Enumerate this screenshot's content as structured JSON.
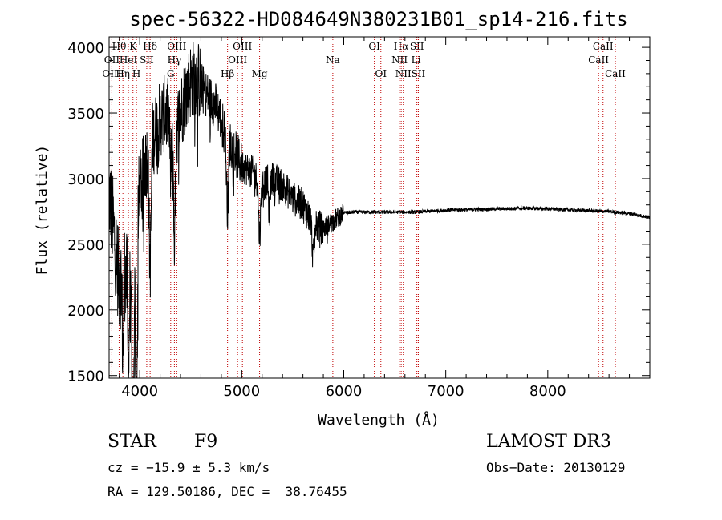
{
  "chart_data": {
    "type": "line",
    "title": "spec-56322-HD084649N380231B01_sp14-216.fits",
    "xlabel": "Wavelength (Å)",
    "ylabel": "Flux (relative)",
    "xlim": [
      3700,
      9000
    ],
    "ylim": [
      1480,
      4080
    ],
    "xticks": [
      4000,
      5000,
      6000,
      7000,
      8000
    ],
    "yticks": [
      1500,
      2000,
      2500,
      3000,
      3500,
      4000
    ],
    "grid": false,
    "line_color": "#000000",
    "marker_color": "#c00000",
    "spectrum_anchors": [
      [
        3700,
        2900
      ],
      [
        3760,
        2500
      ],
      [
        3800,
        2200
      ],
      [
        3850,
        2300
      ],
      [
        3900,
        2100
      ],
      [
        3950,
        2350
      ],
      [
        4000,
        2900
      ],
      [
        4050,
        3100
      ],
      [
        4100,
        3250
      ],
      [
        4150,
        3350
      ],
      [
        4200,
        3450
      ],
      [
        4250,
        3500
      ],
      [
        4300,
        3450
      ],
      [
        4350,
        3350
      ],
      [
        4400,
        3500
      ],
      [
        4450,
        3650
      ],
      [
        4500,
        3750
      ],
      [
        4550,
        3780
      ],
      [
        4600,
        3720
      ],
      [
        4650,
        3650
      ],
      [
        4700,
        3600
      ],
      [
        4750,
        3550
      ],
      [
        4800,
        3450
      ],
      [
        4850,
        3300
      ],
      [
        4900,
        3250
      ],
      [
        5000,
        3100
      ],
      [
        5100,
        3050
      ],
      [
        5200,
        2950
      ],
      [
        5300,
        3000
      ],
      [
        5400,
        2950
      ],
      [
        5500,
        2850
      ],
      [
        5600,
        2800
      ],
      [
        5700,
        2650
      ],
      [
        5800,
        2620
      ],
      [
        5900,
        2680
      ],
      [
        6000,
        2740
      ],
      [
        6100,
        2745
      ],
      [
        6300,
        2745
      ],
      [
        6500,
        2745
      ],
      [
        6700,
        2745
      ],
      [
        7000,
        2760
      ],
      [
        7500,
        2770
      ],
      [
        7800,
        2775
      ],
      [
        8000,
        2770
      ],
      [
        8300,
        2760
      ],
      [
        8600,
        2750
      ],
      [
        8800,
        2735
      ],
      [
        9000,
        2705
      ]
    ],
    "spectral_lines": [
      {
        "label": "Hθ",
        "wavelength": 3798,
        "row": 0
      },
      {
        "label": "K",
        "wavelength": 3934,
        "row": 0
      },
      {
        "label": "Hδ",
        "wavelength": 4102,
        "row": 0
      },
      {
        "label": "OIII",
        "wavelength": 4363,
        "row": 0
      },
      {
        "label": "OIII",
        "wavelength": 5007,
        "row": 0
      },
      {
        "label": "OI",
        "wavelength": 6300,
        "row": 0
      },
      {
        "label": "Hα",
        "wavelength": 6563,
        "row": 0
      },
      {
        "label": "SII",
        "wavelength": 6717,
        "row": 0
      },
      {
        "label": "CaII",
        "wavelength": 8542,
        "row": 0
      },
      {
        "label": "OII",
        "wavelength": 3727,
        "row": 1
      },
      {
        "label": "HeI",
        "wavelength": 3889,
        "row": 1
      },
      {
        "label": "SII",
        "wavelength": 4069,
        "row": 1
      },
      {
        "label": "Hγ",
        "wavelength": 4340,
        "row": 1
      },
      {
        "label": "OIII",
        "wavelength": 4959,
        "row": 1
      },
      {
        "label": "Na",
        "wavelength": 5893,
        "row": 1
      },
      {
        "label": "NII",
        "wavelength": 6548,
        "row": 1
      },
      {
        "label": "Li",
        "wavelength": 6708,
        "row": 1
      },
      {
        "label": "CaII",
        "wavelength": 8498,
        "row": 1
      },
      {
        "label": "OIII",
        "wavelength": 3727,
        "row": 2
      },
      {
        "label": "Hη",
        "wavelength": 3835,
        "row": 2
      },
      {
        "label": "H",
        "wavelength": 3968,
        "row": 2
      },
      {
        "label": "G",
        "wavelength": 4304,
        "row": 2
      },
      {
        "label": "Hβ",
        "wavelength": 4861,
        "row": 2
      },
      {
        "label": "Mg",
        "wavelength": 5175,
        "row": 2
      },
      {
        "label": "OI",
        "wavelength": 6364,
        "row": 2
      },
      {
        "label": "NII",
        "wavelength": 6584,
        "row": 2
      },
      {
        "label": "SII",
        "wavelength": 6731,
        "row": 2
      },
      {
        "label": "CaII",
        "wavelength": 8662,
        "row": 2
      }
    ]
  },
  "info": {
    "class_label": "STAR",
    "subclass": "F9",
    "cz": "cz = −15.9 ± 5.3 km/s",
    "coords": "RA = 129.50186, DEC =  38.76455",
    "survey": "LAMOST DR3",
    "obs_date": "Obs−Date: 20130129"
  }
}
